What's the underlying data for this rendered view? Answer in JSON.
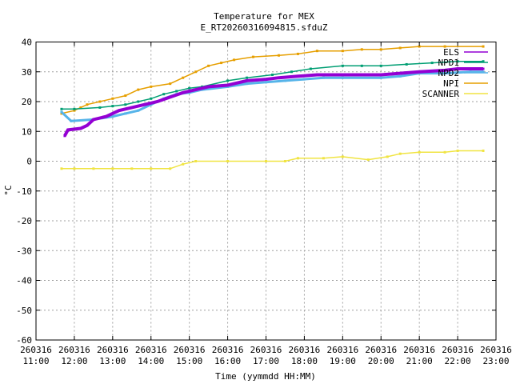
{
  "chart_data": {
    "type": "line",
    "title": "Temperature for MEX",
    "subtitle": "E_RT20260316094815.sfduZ",
    "xlabel": "Time (yymmdd HH:MM)",
    "ylabel": "°C",
    "ylim": [
      -60,
      40
    ],
    "y_ticks": [
      -60,
      -50,
      -40,
      -30,
      -20,
      -10,
      0,
      10,
      20,
      30,
      40
    ],
    "xlim": [
      "2026-03-16 11:00",
      "2026-03-16 23:00"
    ],
    "x_ticks": [
      {
        "date": "260316",
        "time": "11:00"
      },
      {
        "date": "260316",
        "time": "12:00"
      },
      {
        "date": "260316",
        "time": "13:00"
      },
      {
        "date": "260316",
        "time": "14:00"
      },
      {
        "date": "260316",
        "time": "15:00"
      },
      {
        "date": "260316",
        "time": "16:00"
      },
      {
        "date": "260316",
        "time": "17:00"
      },
      {
        "date": "260316",
        "time": "18:00"
      },
      {
        "date": "260316",
        "time": "19:00"
      },
      {
        "date": "260316",
        "time": "20:00"
      },
      {
        "date": "260316",
        "time": "21:00"
      },
      {
        "date": "260316",
        "time": "22:00"
      },
      {
        "date": "260316",
        "time": "23:00"
      }
    ],
    "grid": true,
    "legend_position": "top-right",
    "series": [
      {
        "name": "ELS",
        "color": "#9400d3",
        "points": [
          [
            "11:45",
            8.5
          ],
          [
            "11:50",
            10.5
          ],
          [
            "12:10",
            11
          ],
          [
            "12:20",
            12
          ],
          [
            "12:30",
            14
          ],
          [
            "12:50",
            15
          ],
          [
            "13:10",
            17
          ],
          [
            "13:30",
            18
          ],
          [
            "13:50",
            19
          ],
          [
            "14:10",
            20
          ],
          [
            "14:30",
            21.5
          ],
          [
            "14:50",
            23
          ],
          [
            "15:10",
            24
          ],
          [
            "15:30",
            25
          ],
          [
            "16:00",
            25.5
          ],
          [
            "16:10",
            26
          ],
          [
            "16:30",
            27
          ],
          [
            "17:00",
            27.5
          ],
          [
            "17:20",
            28
          ],
          [
            "17:50",
            28.5
          ],
          [
            "18:20",
            29
          ],
          [
            "19:00",
            29
          ],
          [
            "20:00",
            29
          ],
          [
            "20:30",
            29.5
          ],
          [
            "21:00",
            30
          ],
          [
            "21:40",
            30.5
          ],
          [
            "22:00",
            31
          ],
          [
            "22:40",
            31
          ]
        ]
      },
      {
        "name": "NPD1",
        "color": "#009e73",
        "points": [
          [
            "11:40",
            17.5
          ],
          [
            "12:00",
            17.5
          ],
          [
            "12:40",
            18
          ],
          [
            "13:00",
            18.5
          ],
          [
            "13:20",
            19
          ],
          [
            "13:40",
            20
          ],
          [
            "14:00",
            21
          ],
          [
            "14:20",
            22.5
          ],
          [
            "14:40",
            23.5
          ],
          [
            "15:00",
            24.5
          ],
          [
            "15:20",
            25
          ],
          [
            "16:00",
            27
          ],
          [
            "16:30",
            28
          ],
          [
            "17:10",
            29
          ],
          [
            "17:40",
            30
          ],
          [
            "18:10",
            31
          ],
          [
            "19:00",
            32
          ],
          [
            "19:30",
            32
          ],
          [
            "20:00",
            32
          ],
          [
            "20:40",
            32.5
          ],
          [
            "21:20",
            33
          ],
          [
            "22:00",
            33.5
          ],
          [
            "22:40",
            33.5
          ]
        ]
      },
      {
        "name": "NPD2",
        "color": "#56b4e9",
        "points": [
          [
            "11:40",
            16.5
          ],
          [
            "11:55",
            13.5
          ],
          [
            "12:30",
            14
          ],
          [
            "13:00",
            15
          ],
          [
            "13:20",
            16
          ],
          [
            "13:40",
            17
          ],
          [
            "14:00",
            19
          ],
          [
            "14:20",
            21
          ],
          [
            "14:40",
            22.5
          ],
          [
            "15:00",
            23
          ],
          [
            "15:20",
            24
          ],
          [
            "16:00",
            25
          ],
          [
            "16:30",
            26
          ],
          [
            "17:00",
            26.5
          ],
          [
            "17:30",
            27
          ],
          [
            "18:00",
            27.5
          ],
          [
            "18:30",
            28
          ],
          [
            "19:00",
            28
          ],
          [
            "20:00",
            28
          ],
          [
            "20:30",
            28.5
          ],
          [
            "21:00",
            29.5
          ],
          [
            "21:40",
            29.5
          ],
          [
            "22:20",
            30
          ],
          [
            "22:40",
            30
          ]
        ]
      },
      {
        "name": "NPI",
        "color": "#e69f00",
        "points": [
          [
            "11:40",
            16
          ],
          [
            "12:00",
            17
          ],
          [
            "12:10",
            18
          ],
          [
            "12:20",
            19
          ],
          [
            "12:40",
            20
          ],
          [
            "13:00",
            21
          ],
          [
            "13:20",
            22
          ],
          [
            "13:40",
            24
          ],
          [
            "14:00",
            25
          ],
          [
            "14:30",
            26
          ],
          [
            "14:50",
            28
          ],
          [
            "15:10",
            30
          ],
          [
            "15:30",
            32
          ],
          [
            "15:50",
            33
          ],
          [
            "16:10",
            34
          ],
          [
            "16:40",
            35
          ],
          [
            "17:20",
            35.5
          ],
          [
            "17:50",
            36
          ],
          [
            "18:20",
            37
          ],
          [
            "19:00",
            37
          ],
          [
            "19:30",
            37.5
          ],
          [
            "20:00",
            37.5
          ],
          [
            "20:30",
            38
          ],
          [
            "21:00",
            38.5
          ],
          [
            "21:40",
            38.5
          ],
          [
            "22:40",
            38.5
          ]
        ]
      },
      {
        "name": "SCANNER",
        "color": "#f0e442",
        "points": [
          [
            "11:40",
            -2.5
          ],
          [
            "12:00",
            -2.5
          ],
          [
            "12:30",
            -2.5
          ],
          [
            "13:00",
            -2.5
          ],
          [
            "13:30",
            -2.5
          ],
          [
            "14:00",
            -2.5
          ],
          [
            "14:30",
            -2.5
          ],
          [
            "14:50",
            -1
          ],
          [
            "15:10",
            0
          ],
          [
            "16:00",
            0
          ],
          [
            "17:00",
            0
          ],
          [
            "17:30",
            0
          ],
          [
            "17:50",
            1
          ],
          [
            "18:30",
            1
          ],
          [
            "19:00",
            1.5
          ],
          [
            "19:40",
            0.5
          ],
          [
            "20:10",
            1.5
          ],
          [
            "20:30",
            2.5
          ],
          [
            "21:00",
            3
          ],
          [
            "21:40",
            3
          ],
          [
            "22:00",
            3.5
          ],
          [
            "22:40",
            3.5
          ]
        ]
      }
    ]
  }
}
